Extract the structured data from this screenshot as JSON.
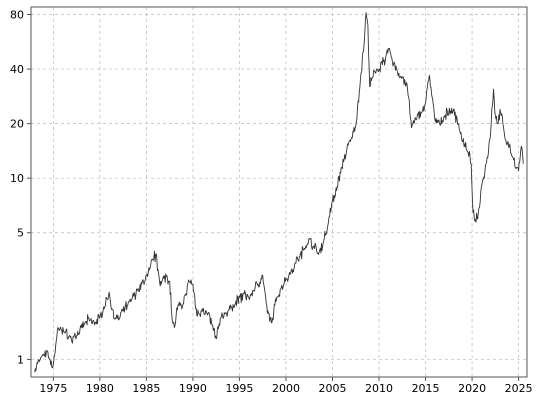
{
  "chart_data": {
    "type": "line",
    "title": "",
    "xlabel": "",
    "ylabel": "",
    "x_scale": "linear",
    "y_scale": "log",
    "xlim": [
      1972.6,
      2025.9
    ],
    "ylim": [
      0.8,
      88
    ],
    "grid": true,
    "legend": "none",
    "x_ticks": [
      1975,
      1980,
      1985,
      1990,
      1995,
      2000,
      2005,
      2010,
      2015,
      2020,
      2025
    ],
    "x_tick_labels": [
      "1975",
      "1980",
      "1985",
      "1990",
      "1995",
      "2000",
      "2005",
      "2010",
      "2015",
      "2020",
      "2025"
    ],
    "y_ticks": [
      1,
      5,
      10,
      20,
      40,
      80
    ],
    "y_tick_labels": [
      "1",
      "5",
      "10",
      "20",
      "40",
      "80"
    ],
    "colors": {
      "line": "#333333",
      "grid": "#bbbbbb",
      "frame": "#555555"
    },
    "series": [
      {
        "x": [
          1973.0,
          1973.3,
          1973.6,
          1974.0,
          1974.3,
          1974.6,
          1974.9,
          1975.2,
          1975.5,
          1975.9,
          1976.3,
          1976.7,
          1977.0,
          1977.5,
          1978.0,
          1978.5,
          1979.0,
          1979.5,
          1980.0,
          1980.4,
          1980.8,
          1981.0,
          1981.3,
          1981.7,
          1982.0,
          1982.5,
          1983.0,
          1983.5,
          1984.0,
          1984.5,
          1985.0,
          1985.4,
          1985.8,
          1986.0,
          1986.3,
          1986.6,
          1986.9,
          1987.2,
          1987.5,
          1987.8,
          1988.0,
          1988.4,
          1988.8,
          1989.2,
          1989.6,
          1990.0,
          1990.3,
          1990.6,
          1991.0,
          1991.5,
          1992.0,
          1992.5,
          1993.0,
          1993.5,
          1994.0,
          1994.5,
          1995.0,
          1995.5,
          1996.0,
          1996.5,
          1997.0,
          1997.5,
          1998.0,
          1998.5,
          1999.0,
          1999.5,
          2000.0,
          2000.5,
          2001.0,
          2001.5,
          2002.0,
          2002.5,
          2003.0,
          2003.5,
          2004.0,
          2004.5,
          2005.0,
          2005.5,
          2006.0,
          2006.5,
          2007.0,
          2007.5,
          2008.0,
          2008.4,
          2008.6,
          2008.8,
          2009.0,
          2009.3,
          2009.6,
          2010.0,
          2010.3,
          2010.6,
          2011.0,
          2011.3,
          2011.7,
          2012.0,
          2012.5,
          2013.0,
          2013.5,
          2014.0,
          2014.5,
          2015.0,
          2015.4,
          2015.7,
          2016.0,
          2016.5,
          2017.0,
          2017.5,
          2018.0,
          2018.5,
          2019.0,
          2019.5,
          2019.9,
          2020.1,
          2020.3,
          2020.6,
          2021.0,
          2021.5,
          2022.0,
          2022.3,
          2022.5,
          2022.8,
          2023.0,
          2023.5,
          2024.0,
          2024.4,
          2024.8,
          2025.0,
          2025.3,
          2025.5
        ],
        "y": [
          0.85,
          0.95,
          1.0,
          1.05,
          1.12,
          1.0,
          0.9,
          1.1,
          1.5,
          1.45,
          1.4,
          1.35,
          1.25,
          1.35,
          1.5,
          1.6,
          1.65,
          1.6,
          1.7,
          1.95,
          2.15,
          2.35,
          1.9,
          1.7,
          1.65,
          1.85,
          2.0,
          2.2,
          2.4,
          2.6,
          2.9,
          3.2,
          3.6,
          3.8,
          3.0,
          2.6,
          2.8,
          2.9,
          2.7,
          1.6,
          1.5,
          2.0,
          1.9,
          2.3,
          2.7,
          2.6,
          1.9,
          1.8,
          1.9,
          1.8,
          1.6,
          1.3,
          1.7,
          1.8,
          1.9,
          2.0,
          2.2,
          2.3,
          2.2,
          2.4,
          2.6,
          2.9,
          1.8,
          1.6,
          2.2,
          2.5,
          2.8,
          3.0,
          3.4,
          3.7,
          4.1,
          4.6,
          4.2,
          3.8,
          4.4,
          5.5,
          7.5,
          9.0,
          11.5,
          14.0,
          16.5,
          19.5,
          35.0,
          55.0,
          82.0,
          70.0,
          32.0,
          36.0,
          38.0,
          40.0,
          44.0,
          42.0,
          52.0,
          47.0,
          42.0,
          38.0,
          36.0,
          33.0,
          19.0,
          21.0,
          23.0,
          26.0,
          37.0,
          28.0,
          21.0,
          20.0,
          22.0,
          23.0,
          24.0,
          20.0,
          16.0,
          14.0,
          12.0,
          6.5,
          5.8,
          6.0,
          9.0,
          12.0,
          18.0,
          31.0,
          22.0,
          20.0,
          24.0,
          17.0,
          15.0,
          13.0,
          11.5,
          11.0,
          15.0,
          12.0
        ]
      }
    ]
  }
}
